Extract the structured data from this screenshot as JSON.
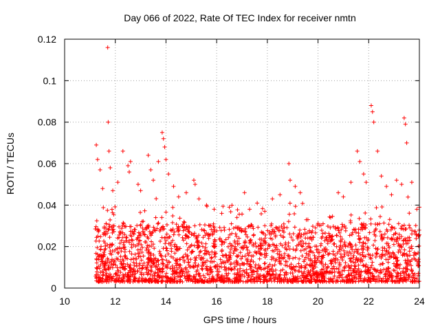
{
  "chart_data": {
    "type": "scatter",
    "title": "Day 066 of 2022, Rate Of TEC Index for receiver nmtn",
    "xlabel": "GPS time / hours",
    "ylabel": "ROTI / TECUs",
    "xlim": [
      10,
      24
    ],
    "ylim": [
      0,
      0.12
    ],
    "xticks": [
      10,
      12,
      14,
      16,
      18,
      20,
      22,
      24
    ],
    "yticks": [
      0,
      0.02,
      0.04,
      0.06,
      0.08,
      0.1,
      0.12
    ],
    "xtick_labels": [
      "10",
      "12",
      "14",
      "16",
      "18",
      "20",
      "22",
      "24"
    ],
    "ytick_labels": [
      "0",
      "0.02",
      "0.04",
      "0.06",
      "0.08",
      "0.1",
      "0.12"
    ],
    "grid": true,
    "marker": "+",
    "color": "#ff0000",
    "series": [
      {
        "name": "ROTI",
        "points": [
          [
            11.25,
            0.069
          ],
          [
            11.3,
            0.062
          ],
          [
            11.4,
            0.057
          ],
          [
            11.5,
            0.048
          ],
          [
            11.7,
            0.116
          ],
          [
            11.72,
            0.08
          ],
          [
            11.75,
            0.066
          ],
          [
            11.8,
            0.058
          ],
          [
            11.9,
            0.047
          ],
          [
            12.1,
            0.051
          ],
          [
            12.3,
            0.066
          ],
          [
            12.5,
            0.059
          ],
          [
            12.55,
            0.056
          ],
          [
            12.6,
            0.061
          ],
          [
            12.9,
            0.05
          ],
          [
            13.0,
            0.047
          ],
          [
            13.3,
            0.064
          ],
          [
            13.4,
            0.057
          ],
          [
            13.5,
            0.052
          ],
          [
            13.7,
            0.061
          ],
          [
            13.85,
            0.075
          ],
          [
            13.9,
            0.072
          ],
          [
            13.95,
            0.068
          ],
          [
            14.0,
            0.062
          ],
          [
            14.1,
            0.055
          ],
          [
            14.3,
            0.049
          ],
          [
            14.5,
            0.044
          ],
          [
            14.8,
            0.046
          ],
          [
            15.1,
            0.052
          ],
          [
            15.15,
            0.05
          ],
          [
            15.3,
            0.043
          ],
          [
            15.6,
            0.04
          ],
          [
            15.9,
            0.038
          ],
          [
            16.2,
            0.036
          ],
          [
            16.5,
            0.039
          ],
          [
            16.8,
            0.034
          ],
          [
            17.1,
            0.046
          ],
          [
            17.3,
            0.038
          ],
          [
            17.6,
            0.041
          ],
          [
            17.9,
            0.037
          ],
          [
            18.2,
            0.043
          ],
          [
            18.5,
            0.045
          ],
          [
            18.85,
            0.06
          ],
          [
            18.9,
            0.052
          ],
          [
            19.1,
            0.049
          ],
          [
            19.3,
            0.046
          ],
          [
            19.6,
            0.033
          ],
          [
            19.9,
            0.029
          ],
          [
            20.2,
            0.031
          ],
          [
            20.5,
            0.034
          ],
          [
            20.8,
            0.046
          ],
          [
            21.0,
            0.044
          ],
          [
            21.3,
            0.051
          ],
          [
            21.55,
            0.066
          ],
          [
            21.65,
            0.061
          ],
          [
            21.8,
            0.055
          ],
          [
            21.9,
            0.051
          ],
          [
            22.1,
            0.088
          ],
          [
            22.15,
            0.085
          ],
          [
            22.2,
            0.08
          ],
          [
            22.35,
            0.066
          ],
          [
            22.5,
            0.054
          ],
          [
            22.7,
            0.049
          ],
          [
            22.9,
            0.045
          ],
          [
            23.1,
            0.052
          ],
          [
            23.3,
            0.05
          ],
          [
            23.4,
            0.082
          ],
          [
            23.45,
            0.079
          ],
          [
            23.5,
            0.07
          ],
          [
            23.7,
            0.051
          ],
          [
            23.9,
            0.038
          ],
          [
            24.0,
            0.039
          ]
        ]
      }
    ]
  }
}
